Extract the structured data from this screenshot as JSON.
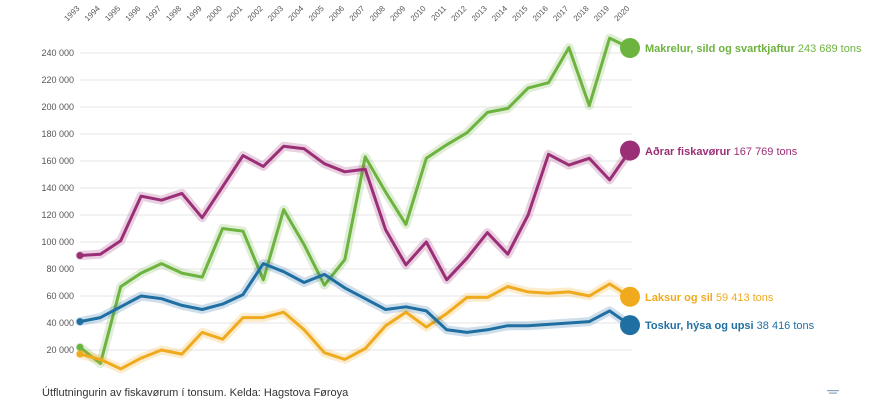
{
  "caption": "Útflutningurin av fiskavørum í tonsum. Kelda: Hagstova Føroya",
  "chart_data": {
    "type": "line",
    "title": "",
    "xlabel": "",
    "ylabel": "",
    "x": [
      1993,
      1994,
      1995,
      1996,
      1997,
      1998,
      1999,
      2000,
      2001,
      2002,
      2003,
      2004,
      2005,
      2006,
      2007,
      2008,
      2009,
      2010,
      2011,
      2012,
      2013,
      2014,
      2015,
      2016,
      2017,
      2018,
      2019,
      2020
    ],
    "x_tick_labels": [
      "1993",
      "1994",
      "1995",
      "1996",
      "1997",
      "1998",
      "1999",
      "2000",
      "2001",
      "2002",
      "2003",
      "2004",
      "2005",
      "2006",
      "2007",
      "2008",
      "2009",
      "2010",
      "2011",
      "2012",
      "2013",
      "2014",
      "2015",
      "2016",
      "2017",
      "2018",
      "2019",
      "2020"
    ],
    "ylim": [
      0,
      260000
    ],
    "y_ticks": [
      20000,
      40000,
      60000,
      80000,
      100000,
      120000,
      140000,
      160000,
      180000,
      200000,
      220000,
      240000
    ],
    "y_tick_labels": [
      "20 000",
      "40 000",
      "60 000",
      "80 000",
      "100 000",
      "120 000",
      "140 000",
      "160 000",
      "180 000",
      "200 000",
      "220 000",
      "240 000"
    ],
    "grid": true,
    "legend": "end-labels",
    "series": [
      {
        "name": "Makrelur, sild og svartkjaftur",
        "end_value": "243 689 tons",
        "color": "#6db33f",
        "values": [
          22000,
          10000,
          67000,
          77000,
          84000,
          77000,
          74000,
          110000,
          108000,
          72000,
          124000,
          98000,
          68000,
          87000,
          163000,
          137000,
          113000,
          162000,
          172000,
          181000,
          196000,
          199000,
          214000,
          218000,
          244000,
          201000,
          251000,
          243689
        ]
      },
      {
        "name": "Aðrar fiskavørur",
        "end_value": "167 769 tons",
        "color": "#9b2f77",
        "values": [
          90000,
          91000,
          101000,
          134000,
          131000,
          136000,
          118000,
          141000,
          164000,
          156000,
          171000,
          169000,
          158000,
          152000,
          154000,
          109000,
          83000,
          100000,
          72000,
          88000,
          107000,
          91000,
          120000,
          165000,
          157000,
          162000,
          146000,
          167769
        ]
      },
      {
        "name": "Laksur og sil",
        "end_value": "59 413 tons",
        "color": "#f0aa1e",
        "values": [
          17000,
          13000,
          6000,
          14000,
          20000,
          17000,
          33000,
          28000,
          44000,
          44000,
          48000,
          35000,
          18000,
          13000,
          21000,
          38000,
          48000,
          37000,
          47000,
          59000,
          59000,
          67000,
          63000,
          62000,
          63000,
          60000,
          69000,
          59413
        ]
      },
      {
        "name": "Toskur, hýsa og upsi",
        "end_value": "38 416 tons",
        "color": "#1f6fa3",
        "values": [
          41000,
          44000,
          52000,
          60000,
          58000,
          53000,
          50000,
          54000,
          61000,
          84000,
          78000,
          70000,
          76000,
          66000,
          58000,
          50000,
          52000,
          49000,
          35000,
          33000,
          35000,
          38000,
          38000,
          39000,
          40000,
          41000,
          49000,
          38416
        ]
      }
    ]
  }
}
